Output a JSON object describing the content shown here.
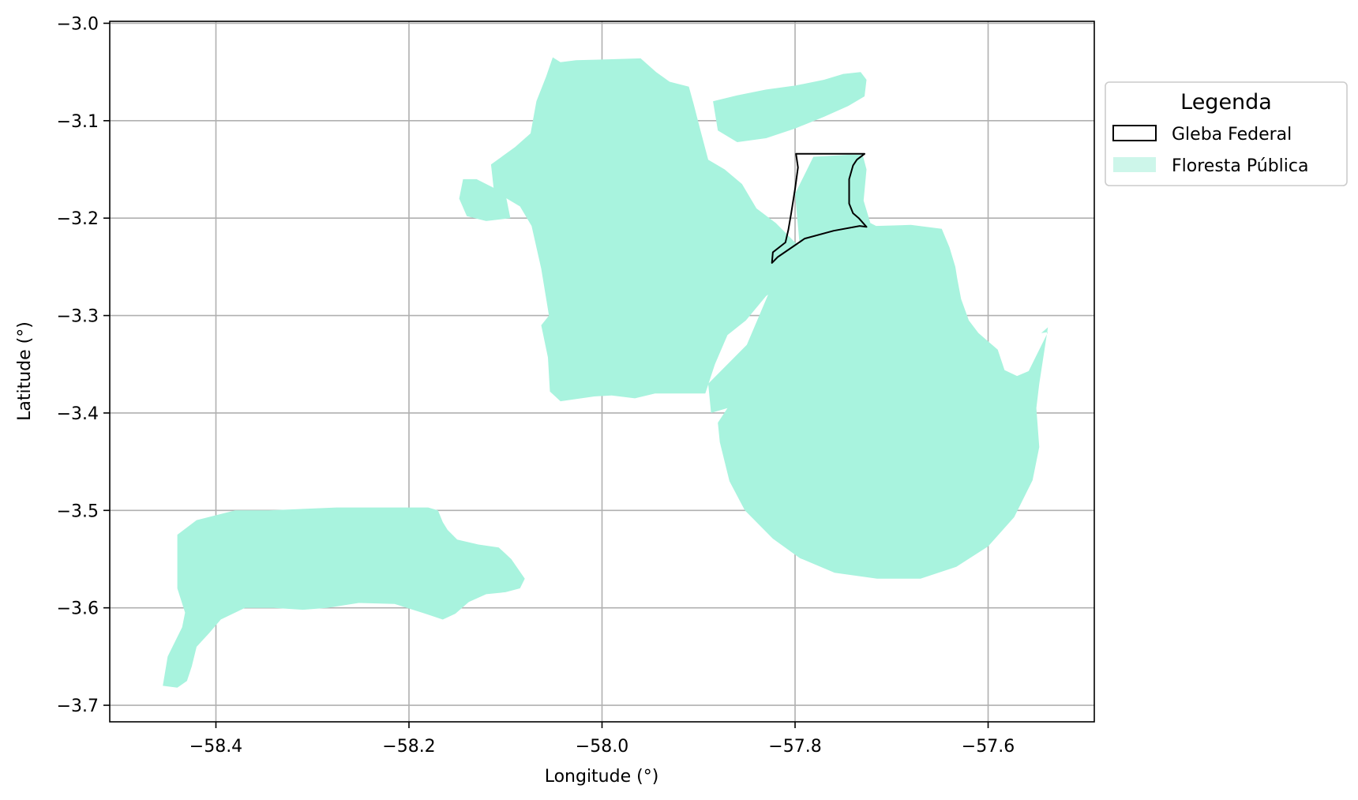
{
  "chart_data": {
    "type": "map",
    "xlabel": "Longitude (°)",
    "ylabel": "Latitude (°)",
    "xlim": [
      -58.51,
      -57.49
    ],
    "ylim": [
      -3.717,
      -2.998
    ],
    "grid": true,
    "x_ticks": [
      -58.4,
      -58.2,
      -58.0,
      -57.8,
      -57.6
    ],
    "y_ticks": [
      -3.0,
      -3.1,
      -3.2,
      -3.3,
      -3.4,
      -3.5,
      -3.6,
      -3.7
    ],
    "x_tick_labels": [
      "−58.4",
      "−58.2",
      "−58.0",
      "−57.8",
      "−57.6"
    ],
    "y_tick_labels": [
      "−3.0",
      "−3.1",
      "−3.2",
      "−3.3",
      "−3.4",
      "−3.5",
      "−3.6",
      "−3.7"
    ],
    "legend": {
      "title": "Legenda",
      "placement": "outside-right-top",
      "entries": [
        {
          "label": "Gleba Federal",
          "style": "outline",
          "color": "#000000"
        },
        {
          "label": "Floresta Pública",
          "style": "fill",
          "color": "#a8f3de"
        }
      ]
    },
    "layers": [
      {
        "name": "Floresta Pública",
        "color": "#a8f3de",
        "polygons": [
          [
            [
              -58.051,
              -3.035
            ],
            [
              -58.043,
              -3.04
            ],
            [
              -58.027,
              -3.038
            ],
            [
              -57.993,
              -3.037
            ],
            [
              -57.96,
              -3.036
            ],
            [
              -57.944,
              -3.05
            ],
            [
              -57.93,
              -3.06
            ],
            [
              -57.91,
              -3.065
            ],
            [
              -57.905,
              -3.083
            ],
            [
              -57.898,
              -3.11
            ],
            [
              -57.89,
              -3.14
            ],
            [
              -57.873,
              -3.15
            ],
            [
              -57.855,
              -3.165
            ],
            [
              -57.84,
              -3.19
            ],
            [
              -57.82,
              -3.205
            ],
            [
              -57.8,
              -3.225
            ],
            [
              -57.78,
              -3.235
            ],
            [
              -57.755,
              -3.24
            ],
            [
              -57.74,
              -3.25
            ],
            [
              -57.74,
              -3.255
            ],
            [
              -57.769,
              -3.258
            ],
            [
              -57.808,
              -3.265
            ],
            [
              -57.83,
              -3.28
            ],
            [
              -57.851,
              -3.305
            ],
            [
              -57.87,
              -3.32
            ],
            [
              -57.883,
              -3.35
            ],
            [
              -57.893,
              -3.38
            ],
            [
              -57.912,
              -3.38
            ],
            [
              -57.945,
              -3.38
            ],
            [
              -57.966,
              -3.385
            ],
            [
              -57.99,
              -3.382
            ],
            [
              -58.008,
              -3.383
            ],
            [
              -58.043,
              -3.388
            ],
            [
              -58.054,
              -3.378
            ],
            [
              -58.056,
              -3.343
            ],
            [
              -58.063,
              -3.31
            ],
            [
              -58.055,
              -3.3
            ],
            [
              -58.063,
              -3.252
            ],
            [
              -58.073,
              -3.208
            ],
            [
              -58.085,
              -3.188
            ],
            [
              -58.112,
              -3.172
            ],
            [
              -58.115,
              -3.145
            ],
            [
              -58.09,
              -3.127
            ],
            [
              -58.074,
              -3.113
            ],
            [
              -58.068,
              -3.08
            ],
            [
              -58.058,
              -3.055
            ]
          ],
          [
            [
              -57.885,
              -3.08
            ],
            [
              -57.86,
              -3.074
            ],
            [
              -57.83,
              -3.068
            ],
            [
              -57.8,
              -3.064
            ],
            [
              -57.77,
              -3.058
            ],
            [
              -57.75,
              -3.052
            ],
            [
              -57.732,
              -3.05
            ],
            [
              -57.726,
              -3.058
            ],
            [
              -57.728,
              -3.075
            ],
            [
              -57.745,
              -3.085
            ],
            [
              -57.77,
              -3.096
            ],
            [
              -57.8,
              -3.108
            ],
            [
              -57.83,
              -3.118
            ],
            [
              -57.86,
              -3.122
            ],
            [
              -57.88,
              -3.11
            ]
          ],
          [
            [
              -57.781,
              -3.137
            ],
            [
              -57.745,
              -3.135
            ],
            [
              -57.73,
              -3.135
            ],
            [
              -57.726,
              -3.15
            ],
            [
              -57.729,
              -3.182
            ],
            [
              -57.722,
              -3.205
            ],
            [
              -57.716,
              -3.208
            ],
            [
              -57.68,
              -3.207
            ],
            [
              -57.648,
              -3.211
            ],
            [
              -57.64,
              -3.23
            ],
            [
              -57.634,
              -3.25
            ],
            [
              -57.632,
              -3.262
            ],
            [
              -57.628,
              -3.283
            ],
            [
              -57.62,
              -3.305
            ],
            [
              -57.61,
              -3.318
            ],
            [
              -57.59,
              -3.335
            ],
            [
              -57.583,
              -3.356
            ],
            [
              -57.57,
              -3.362
            ],
            [
              -57.558,
              -3.357
            ],
            [
              -57.538,
              -3.317
            ],
            [
              -57.545,
              -3.318
            ],
            [
              -57.538,
              -3.312
            ],
            [
              -57.547,
              -3.37
            ],
            [
              -57.55,
              -3.395
            ],
            [
              -57.547,
              -3.435
            ],
            [
              -57.554,
              -3.469
            ],
            [
              -57.573,
              -3.507
            ],
            [
              -57.6,
              -3.537
            ],
            [
              -57.633,
              -3.558
            ],
            [
              -57.67,
              -3.57
            ],
            [
              -57.715,
              -3.57
            ],
            [
              -57.759,
              -3.564
            ],
            [
              -57.795,
              -3.549
            ],
            [
              -57.823,
              -3.529
            ],
            [
              -57.852,
              -3.5
            ],
            [
              -57.868,
              -3.47
            ],
            [
              -57.878,
              -3.43
            ],
            [
              -57.88,
              -3.41
            ],
            [
              -57.87,
              -3.395
            ],
            [
              -57.887,
              -3.4
            ],
            [
              -57.89,
              -3.37
            ],
            [
              -57.85,
              -3.33
            ],
            [
              -57.82,
              -3.26
            ],
            [
              -57.795,
              -3.23
            ],
            [
              -57.8,
              -3.175
            ]
          ],
          [
            [
              -58.148,
              -3.18
            ],
            [
              -58.144,
              -3.16
            ],
            [
              -58.13,
              -3.16
            ],
            [
              -58.1,
              -3.175
            ],
            [
              -58.095,
              -3.2
            ],
            [
              -58.12,
              -3.203
            ],
            [
              -58.14,
              -3.198
            ]
          ],
          [
            [
              -58.2,
              -3.497
            ],
            [
              -58.275,
              -3.497
            ],
            [
              -58.345,
              -3.5
            ],
            [
              -58.38,
              -3.5
            ],
            [
              -58.42,
              -3.51
            ],
            [
              -58.44,
              -3.525
            ],
            [
              -58.44,
              -3.58
            ],
            [
              -58.432,
              -3.605
            ],
            [
              -58.435,
              -3.62
            ],
            [
              -58.45,
              -3.65
            ],
            [
              -58.455,
              -3.68
            ],
            [
              -58.44,
              -3.682
            ],
            [
              -58.43,
              -3.675
            ],
            [
              -58.425,
              -3.66
            ],
            [
              -58.42,
              -3.64
            ],
            [
              -58.407,
              -3.626
            ],
            [
              -58.395,
              -3.612
            ],
            [
              -58.37,
              -3.6
            ],
            [
              -58.34,
              -3.6
            ],
            [
              -58.31,
              -3.602
            ],
            [
              -58.285,
              -3.6
            ],
            [
              -58.252,
              -3.595
            ],
            [
              -58.215,
              -3.596
            ],
            [
              -58.183,
              -3.606
            ],
            [
              -58.165,
              -3.612
            ],
            [
              -58.152,
              -3.606
            ],
            [
              -58.138,
              -3.594
            ],
            [
              -58.12,
              -3.586
            ],
            [
              -58.1,
              -3.584
            ],
            [
              -58.085,
              -3.58
            ],
            [
              -58.08,
              -3.57
            ],
            [
              -58.094,
              -3.55
            ],
            [
              -58.107,
              -3.538
            ],
            [
              -58.128,
              -3.535
            ],
            [
              -58.15,
              -3.53
            ],
            [
              -58.16,
              -3.52
            ],
            [
              -58.165,
              -3.512
            ],
            [
              -58.17,
              -3.5
            ],
            [
              -58.18,
              -3.497
            ]
          ]
        ]
      },
      {
        "name": "Gleba Federal",
        "color": "#000000",
        "polygons": [
          [
            [
              -57.799,
              -3.134
            ],
            [
              -57.728,
              -3.134
            ],
            [
              -57.736,
              -3.14
            ],
            [
              -57.74,
              -3.146
            ],
            [
              -57.744,
              -3.16
            ],
            [
              -57.744,
              -3.185
            ],
            [
              -57.74,
              -3.195
            ],
            [
              -57.734,
              -3.2
            ],
            [
              -57.726,
              -3.209
            ],
            [
              -57.733,
              -3.208
            ],
            [
              -57.76,
              -3.213
            ],
            [
              -57.79,
              -3.221
            ],
            [
              -57.818,
              -3.24
            ],
            [
              -57.824,
              -3.246
            ],
            [
              -57.823,
              -3.235
            ],
            [
              -57.81,
              -3.225
            ],
            [
              -57.807,
              -3.212
            ],
            [
              -57.804,
              -3.195
            ],
            [
              -57.8,
              -3.17
            ],
            [
              -57.797,
              -3.148
            ]
          ]
        ]
      }
    ]
  }
}
